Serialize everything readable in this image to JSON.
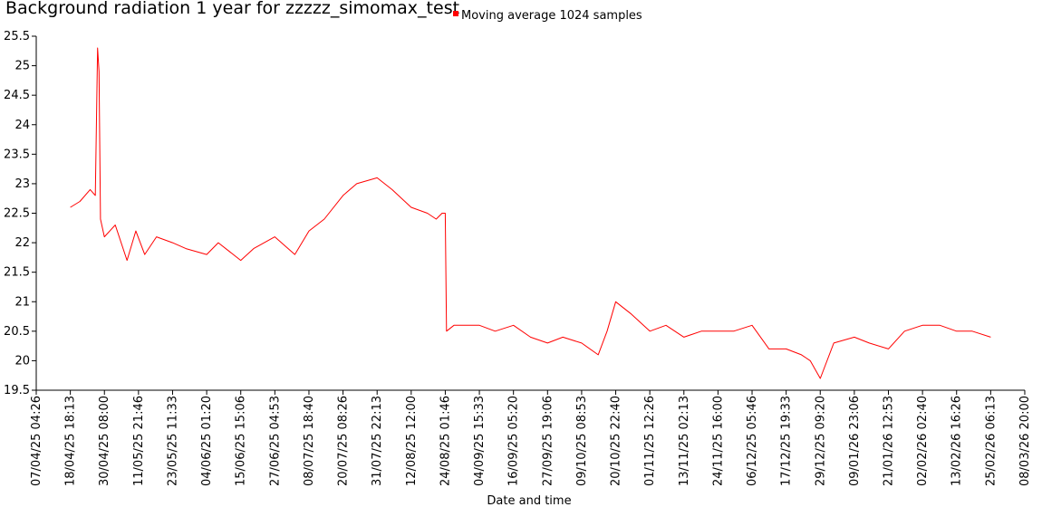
{
  "chart_data": {
    "type": "line",
    "title": "Background radiation 1 year for zzzzz_simomax_test",
    "xlabel": "Date and time",
    "ylabel": "",
    "legend": {
      "label": "Moving average 1024 samples",
      "placement": "top",
      "color": "#ff0000"
    },
    "series_color": "#ff0000",
    "grid": false,
    "ylim": [
      19.5,
      25.5
    ],
    "y_ticks": [
      "19.5",
      "20",
      "20.5",
      "21",
      "21.5",
      "22",
      "22.5",
      "23",
      "23.5",
      "24",
      "24.5",
      "25",
      "25.5"
    ],
    "x_ticks": [
      "07/04/25 04:26",
      "18/04/25 18:13",
      "30/04/25 08:00",
      "11/05/25 21:46",
      "23/05/25 11:33",
      "04/06/25 01:20",
      "15/06/25 15:06",
      "27/06/25 04:53",
      "08/07/25 18:40",
      "20/07/25 08:26",
      "31/07/25 22:13",
      "12/08/25 12:00",
      "24/08/25 01:46",
      "04/09/25 15:33",
      "16/09/25 05:20",
      "27/09/25 19:06",
      "09/10/25 08:53",
      "20/10/25 22:40",
      "01/11/25 12:26",
      "13/11/25 02:13",
      "24/11/25 16:00",
      "06/12/25 05:46",
      "17/12/25 19:33",
      "29/12/25 09:20",
      "09/01/26 23:06",
      "21/01/26 12:53",
      "02/02/26 02:40",
      "13/02/26 16:26",
      "25/02/26 06:13",
      "08/03/26 20:00"
    ],
    "series": [
      {
        "x": [
          "18/04/25 18:13",
          "22/04/25 00:00",
          "25/04/25 12:00",
          "27/04/25 06:00",
          "28/04/25 00:00",
          "28/04/25 12:00",
          "29/04/25 00:00",
          "30/04/25 08:00",
          "04/05/25 00:00",
          "08/05/25 00:00",
          "11/05/25 00:00",
          "14/05/25 00:00",
          "18/05/25 00:00",
          "23/05/25 11:33",
          "28/05/25 00:00",
          "04/06/25 01:20",
          "08/06/25 00:00",
          "15/06/25 15:06",
          "20/06/25 00:00",
          "27/06/25 04:53",
          "04/07/25 00:00",
          "08/07/25 18:40",
          "14/07/25 00:00",
          "20/07/25 08:26",
          "25/07/25 00:00",
          "31/07/25 22:13",
          "06/08/25 00:00",
          "12/08/25 12:00",
          "18/08/25 00:00",
          "21/08/25 00:00",
          "23/08/25 00:00",
          "24/08/25 01:46",
          "24/08/25 12:00",
          "27/08/25 00:00",
          "04/09/25 15:33",
          "10/09/25 00:00",
          "16/09/25 05:20",
          "22/09/25 00:00",
          "27/09/25 19:06",
          "03/10/25 00:00",
          "09/10/25 08:53",
          "15/10/25 00:00",
          "18/10/25 00:00",
          "20/10/25 22:40",
          "26/10/25 00:00",
          "01/11/25 12:26",
          "07/11/25 00:00",
          "13/11/25 02:13",
          "19/11/25 00:00",
          "24/11/25 16:00",
          "30/11/25 00:00",
          "06/12/25 05:46",
          "12/12/25 00:00",
          "17/12/25 19:33",
          "23/12/25 00:00",
          "26/12/25 00:00",
          "29/12/25 09:20",
          "03/01/26 00:00",
          "09/01/26 23:06",
          "15/01/26 00:00",
          "21/01/26 12:53",
          "27/01/26 00:00",
          "02/02/26 02:40",
          "08/02/26 00:00",
          "13/02/26 16:26",
          "19/02/26 00:00",
          "25/02/26 06:13"
        ],
        "y": [
          22.6,
          22.7,
          22.9,
          22.8,
          25.3,
          24.9,
          22.4,
          22.1,
          22.3,
          21.7,
          22.2,
          21.8,
          22.1,
          22.0,
          21.9,
          21.8,
          22.0,
          21.7,
          21.9,
          22.1,
          21.8,
          22.2,
          22.4,
          22.8,
          23.0,
          23.1,
          22.9,
          22.6,
          22.5,
          22.4,
          22.5,
          22.5,
          20.5,
          20.6,
          20.6,
          20.5,
          20.6,
          20.4,
          20.3,
          20.4,
          20.3,
          20.1,
          20.5,
          21.0,
          20.8,
          20.5,
          20.6,
          20.4,
          20.5,
          20.5,
          20.5,
          20.6,
          20.2,
          20.2,
          20.1,
          20.0,
          19.7,
          20.3,
          20.4,
          20.3,
          20.2,
          20.5,
          20.6,
          20.6,
          20.5,
          20.5,
          20.4
        ]
      }
    ]
  }
}
